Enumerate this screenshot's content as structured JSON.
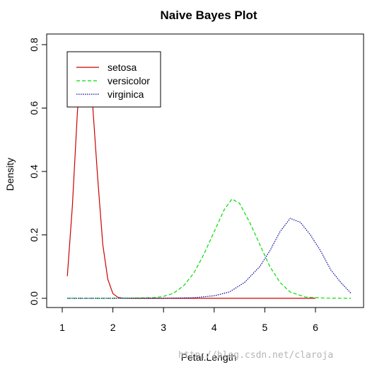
{
  "chart_data": {
    "type": "line",
    "title": "Naive Bayes Plot",
    "xlabel": "Petal.Length",
    "ylabel": "Density",
    "xlim": [
      1.0,
      6.8
    ],
    "ylim": [
      0.0,
      0.8
    ],
    "x_ticks": [
      1,
      2,
      3,
      4,
      5,
      6
    ],
    "y_ticks": [
      0.0,
      0.2,
      0.4,
      0.6,
      0.8
    ],
    "y_tick_labels": [
      "0.0",
      "0.2",
      "0.4",
      "0.6",
      "0.8"
    ],
    "grid": false,
    "legend": {
      "position": "top-left",
      "entries": [
        "setosa",
        "versicolor",
        "virginica"
      ]
    },
    "series": [
      {
        "name": "setosa",
        "color": "#cc0000",
        "line_style": "solid",
        "peak": 0.775,
        "x": [
          1.1,
          1.2,
          1.3,
          1.4,
          1.45,
          1.5,
          1.55,
          1.6,
          1.7,
          1.8,
          1.9,
          2.0,
          2.1,
          2.2,
          2.4,
          3.0,
          4.0,
          5.0,
          6.0
        ],
        "y": [
          0.07,
          0.29,
          0.59,
          0.76,
          0.775,
          0.76,
          0.7,
          0.61,
          0.38,
          0.17,
          0.06,
          0.015,
          0.003,
          0.0005,
          0.0,
          0.0,
          0.0,
          0.0,
          0.0
        ]
      },
      {
        "name": "versicolor",
        "color": "#00dd00",
        "line_style": "dashed",
        "peak": 0.313,
        "x": [
          1.1,
          2.0,
          2.8,
          3.0,
          3.2,
          3.4,
          3.6,
          3.8,
          4.0,
          4.2,
          4.35,
          4.5,
          4.7,
          4.9,
          5.1,
          5.3,
          5.5,
          5.8,
          6.2,
          6.7
        ],
        "y": [
          0.0,
          0.0,
          0.002,
          0.006,
          0.016,
          0.04,
          0.08,
          0.14,
          0.21,
          0.28,
          0.313,
          0.3,
          0.24,
          0.17,
          0.1,
          0.05,
          0.02,
          0.004,
          0.0005,
          0.0
        ]
      },
      {
        "name": "virginica",
        "color": "#000099",
        "line_style": "dotted",
        "peak": 0.252,
        "x": [
          1.1,
          3.0,
          3.6,
          4.0,
          4.3,
          4.6,
          4.9,
          5.1,
          5.3,
          5.5,
          5.7,
          5.9,
          6.1,
          6.3,
          6.5,
          6.7
        ],
        "y": [
          0.0,
          0.0,
          0.002,
          0.008,
          0.02,
          0.05,
          0.1,
          0.15,
          0.21,
          0.252,
          0.24,
          0.2,
          0.15,
          0.09,
          0.05,
          0.016
        ]
      }
    ]
  },
  "watermark": "http://blog.csdn.net/claroja"
}
